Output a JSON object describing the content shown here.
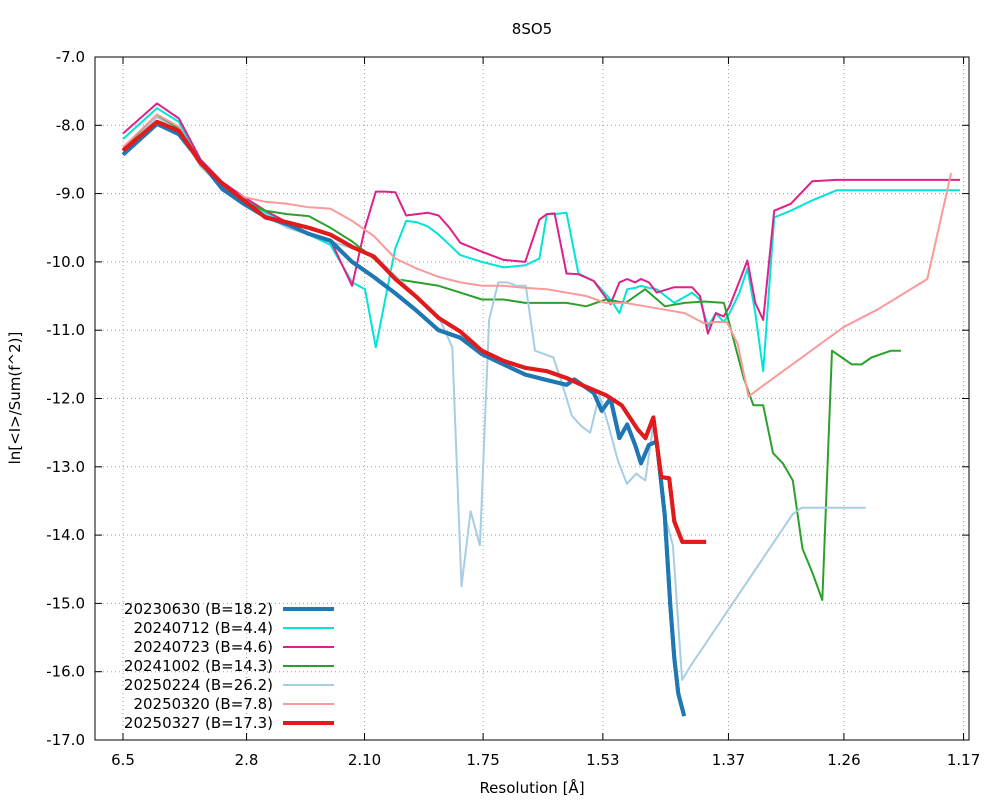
{
  "chart_data": {
    "type": "line",
    "title": "8SO5",
    "xlabel": "Resolution [Å]",
    "ylabel": "ln[<I>/Sum(f^2)]",
    "xlim": [
      0.0237,
      0.7275
    ],
    "ylim": [
      -17.0,
      -7.0
    ],
    "x_scale": "1/d^2",
    "x_ticks": [
      {
        "label": "6.5",
        "value": 0.0237
      },
      {
        "label": "2.8",
        "value": 0.1276
      },
      {
        "label": "2.10",
        "value": 0.2268
      },
      {
        "label": "1.75",
        "value": 0.3265
      },
      {
        "label": "1.53",
        "value": 0.4272
      },
      {
        "label": "1.37",
        "value": 0.5328
      },
      {
        "label": "1.26",
        "value": 0.6299
      },
      {
        "label": "1.17",
        "value": 0.7305
      }
    ],
    "y_ticks": [
      "-7.0",
      "-8.0",
      "-9.0",
      "-10.0",
      "-11.0",
      "-12.0",
      "-13.0",
      "-14.0",
      "-15.0",
      "-16.0",
      "-17.0"
    ],
    "grid": true,
    "legend_position": "bottom-left",
    "series": [
      {
        "name": "20230630 (B=18.2)",
        "color": "#1f77b4",
        "width": 4,
        "x": [
          0.0237,
          0.0523,
          0.0707,
          0.0889,
          0.1071,
          0.1253,
          0.1435,
          0.1617,
          0.1799,
          0.1981,
          0.2163,
          0.2345,
          0.2527,
          0.2709,
          0.2891,
          0.3073,
          0.3255,
          0.3437,
          0.3619,
          0.3801,
          0.3966,
          0.4032,
          0.4114,
          0.4196,
          0.4262,
          0.4336,
          0.4411,
          0.4477,
          0.4543,
          0.4593,
          0.4659,
          0.4725,
          0.4792,
          0.484,
          0.4873,
          0.4906,
          0.4956
        ],
        "y": [
          -8.43,
          -7.98,
          -8.13,
          -8.53,
          -8.93,
          -9.15,
          -9.34,
          -9.45,
          -9.59,
          -9.69,
          -10.0,
          -10.22,
          -10.46,
          -10.72,
          -11.0,
          -11.11,
          -11.35,
          -11.5,
          -11.65,
          -11.73,
          -11.8,
          -11.72,
          -11.82,
          -11.92,
          -12.18,
          -12.0,
          -12.58,
          -12.38,
          -12.68,
          -12.95,
          -12.68,
          -12.63,
          -13.7,
          -15.05,
          -15.8,
          -16.32,
          -16.65
        ]
      },
      {
        "name": "20240712 (B=4.4)",
        "color": "#00e5d8",
        "width": 2,
        "x": [
          0.0237,
          0.0523,
          0.0707,
          0.0889,
          0.1071,
          0.1253,
          0.1435,
          0.1617,
          0.1799,
          0.1981,
          0.2163,
          0.2272,
          0.2363,
          0.2436,
          0.2527,
          0.2618,
          0.2709,
          0.28,
          0.2891,
          0.2982,
          0.3073,
          0.3255,
          0.3437,
          0.3619,
          0.3738,
          0.3801,
          0.3866,
          0.3966,
          0.4066,
          0.4196,
          0.4336,
          0.4411,
          0.4477,
          0.4543,
          0.4593,
          0.4659,
          0.4725,
          0.4873,
          0.5022,
          0.5089,
          0.5155,
          0.5222,
          0.5288,
          0.5338,
          0.5421,
          0.5487,
          0.5554,
          0.562,
          0.5713,
          0.5852,
          0.6032,
          0.6239,
          0.6393,
          0.6489,
          0.6647,
          0.6796,
          0.6945,
          0.7094,
          0.7275
        ],
        "y": [
          -8.2,
          -7.75,
          -7.95,
          -8.55,
          -8.87,
          -9.08,
          -9.28,
          -9.42,
          -9.6,
          -9.75,
          -10.3,
          -10.4,
          -11.25,
          -10.6,
          -9.8,
          -9.4,
          -9.42,
          -9.48,
          -9.6,
          -9.75,
          -9.9,
          -10.0,
          -10.08,
          -10.05,
          -9.95,
          -9.3,
          -9.3,
          -9.28,
          -10.17,
          -10.28,
          -10.55,
          -10.75,
          -10.4,
          -10.38,
          -10.35,
          -10.38,
          -10.4,
          -10.6,
          -10.45,
          -10.55,
          -10.95,
          -10.75,
          -10.88,
          -10.75,
          -10.45,
          -10.1,
          -10.75,
          -11.6,
          -9.35,
          -9.25,
          -9.1,
          -8.95,
          -8.95,
          -8.95,
          -8.95,
          -8.95,
          -8.95,
          -8.95,
          -8.95
        ]
      },
      {
        "name": "20240723 (B=4.6)",
        "color": "#e0208a",
        "width": 2,
        "x": [
          0.0237,
          0.0523,
          0.0707,
          0.0889,
          0.1071,
          0.1253,
          0.1435,
          0.1617,
          0.1799,
          0.1981,
          0.2163,
          0.2272,
          0.2363,
          0.2436,
          0.2527,
          0.2618,
          0.2709,
          0.28,
          0.2891,
          0.2982,
          0.3073,
          0.3255,
          0.3437,
          0.3619,
          0.3738,
          0.3801,
          0.3866,
          0.3966,
          0.4066,
          0.4196,
          0.4336,
          0.4411,
          0.4477,
          0.4543,
          0.4593,
          0.4659,
          0.4725,
          0.4873,
          0.5022,
          0.5089,
          0.5155,
          0.5222,
          0.5288,
          0.5338,
          0.5421,
          0.5487,
          0.5554,
          0.562,
          0.5713,
          0.5852,
          0.6032,
          0.6239,
          0.6393,
          0.6489,
          0.6647,
          0.6796,
          0.6945,
          0.7094,
          0.7275
        ],
        "y": [
          -8.12,
          -7.68,
          -7.9,
          -8.5,
          -8.83,
          -9.05,
          -9.25,
          -9.42,
          -9.6,
          -9.68,
          -10.35,
          -9.5,
          -8.97,
          -8.97,
          -8.98,
          -9.32,
          -9.3,
          -9.28,
          -9.32,
          -9.5,
          -9.72,
          -9.85,
          -9.97,
          -10.0,
          -9.38,
          -9.3,
          -9.29,
          -10.17,
          -10.18,
          -10.28,
          -10.62,
          -10.3,
          -10.25,
          -10.3,
          -10.25,
          -10.3,
          -10.45,
          -10.37,
          -10.37,
          -10.5,
          -11.05,
          -10.75,
          -10.8,
          -10.65,
          -10.28,
          -9.98,
          -10.6,
          -10.85,
          -9.25,
          -9.15,
          -8.82,
          -8.8,
          -8.8,
          -8.8,
          -8.8,
          -8.8,
          -8.8,
          -8.8,
          -8.8
        ]
      },
      {
        "name": "20241002 (B=14.3)",
        "color": "#2ca02c",
        "width": 2,
        "x": [
          0.0237,
          0.0523,
          0.0707,
          0.0889,
          0.1071,
          0.1253,
          0.1435,
          0.1617,
          0.1799,
          0.1981,
          0.2163,
          0.2345,
          0.2527,
          0.2709,
          0.2891,
          0.3073,
          0.3255,
          0.3437,
          0.3619,
          0.3801,
          0.3966,
          0.4132,
          0.4297,
          0.4463,
          0.4628,
          0.4794,
          0.4959,
          0.5125,
          0.529,
          0.5456,
          0.5538,
          0.562,
          0.5703,
          0.5786,
          0.5869,
          0.5951,
          0.6034,
          0.6117,
          0.6199,
          0.6282,
          0.6365,
          0.6447,
          0.653,
          0.6613,
          0.6695,
          0.6778
        ],
        "y": [
          -8.35,
          -7.87,
          -8.05,
          -8.6,
          -8.9,
          -9.12,
          -9.25,
          -9.3,
          -9.33,
          -9.5,
          -9.7,
          -9.95,
          -10.25,
          -10.3,
          -10.35,
          -10.45,
          -10.55,
          -10.55,
          -10.6,
          -10.6,
          -10.6,
          -10.65,
          -10.55,
          -10.6,
          -10.4,
          -10.65,
          -10.6,
          -10.58,
          -10.6,
          -11.7,
          -12.1,
          -12.1,
          -12.8,
          -12.95,
          -13.2,
          -14.2,
          -14.55,
          -14.95,
          -11.3,
          -11.4,
          -11.5,
          -11.5,
          -11.4,
          -11.35,
          -11.3,
          -11.3
        ]
      },
      {
        "name": "20250224 (B=26.2)",
        "color": "#a6cee3",
        "width": 2,
        "x": [
          0.0237,
          0.0523,
          0.0707,
          0.0889,
          0.1071,
          0.1253,
          0.1435,
          0.1617,
          0.1799,
          0.1981,
          0.2163,
          0.2345,
          0.2527,
          0.2709,
          0.2891,
          0.3006,
          0.3083,
          0.316,
          0.3238,
          0.3315,
          0.3392,
          0.347,
          0.3547,
          0.3624,
          0.3701,
          0.3779,
          0.3856,
          0.3933,
          0.4011,
          0.4088,
          0.4165,
          0.4242,
          0.432,
          0.4397,
          0.4474,
          0.4552,
          0.4629,
          0.4706,
          0.4783,
          0.4861,
          0.4938,
          0.5015,
          0.5093,
          0.517,
          0.5247,
          0.5324,
          0.5402,
          0.5479,
          0.5556,
          0.5634,
          0.5711,
          0.5788,
          0.5865,
          0.5943,
          0.602,
          0.6097,
          0.6175,
          0.6252,
          0.6329,
          0.6406,
          0.6484
        ],
        "y": [
          -8.38,
          -7.88,
          -8.08,
          -8.6,
          -8.9,
          -9.12,
          -9.32,
          -9.5,
          -9.6,
          -9.7,
          -9.8,
          -9.9,
          -10.2,
          -10.5,
          -10.8,
          -11.25,
          -14.75,
          -13.65,
          -14.15,
          -10.85,
          -10.3,
          -10.3,
          -10.35,
          -10.35,
          -11.3,
          -11.35,
          -11.4,
          -11.8,
          -12.25,
          -12.4,
          -12.5,
          -11.95,
          -12.4,
          -12.9,
          -13.25,
          -13.1,
          -13.2,
          -12.25,
          -13.65,
          -14.15,
          -16.12,
          -15.9,
          -15.7,
          -15.5,
          -15.3,
          -15.1,
          -14.9,
          -14.7,
          -14.5,
          -14.3,
          -14.1,
          -13.9,
          -13.7,
          -13.6,
          -13.6,
          -13.6,
          -13.6,
          -13.6,
          -13.6,
          -13.6,
          -13.6
        ]
      },
      {
        "name": "20250320 (B=7.8)",
        "color": "#fb9a99",
        "width": 2,
        "x": [
          0.0237,
          0.0523,
          0.0707,
          0.0889,
          0.1071,
          0.1253,
          0.1435,
          0.1617,
          0.1799,
          0.1981,
          0.2163,
          0.2345,
          0.2527,
          0.2709,
          0.2891,
          0.3073,
          0.3255,
          0.3437,
          0.3619,
          0.3801,
          0.3966,
          0.4132,
          0.4297,
          0.4463,
          0.4628,
          0.4794,
          0.4959,
          0.5125,
          0.5224,
          0.5315,
          0.5406,
          0.5497,
          0.5588,
          0.63,
          0.658,
          0.7,
          0.72
        ],
        "y": [
          -8.32,
          -7.84,
          -8.02,
          -8.58,
          -8.88,
          -9.05,
          -9.12,
          -9.15,
          -9.2,
          -9.22,
          -9.4,
          -9.62,
          -9.95,
          -10.1,
          -10.22,
          -10.3,
          -10.35,
          -10.35,
          -10.38,
          -10.4,
          -10.45,
          -10.5,
          -10.6,
          -10.6,
          -10.65,
          -10.7,
          -10.75,
          -10.9,
          -10.88,
          -10.88,
          -11.2,
          -11.97,
          -11.85,
          -10.95,
          -10.7,
          -10.25,
          -8.7
        ]
      },
      {
        "name": "20250327 (B=17.3)",
        "color": "#e31a1c",
        "width": 4,
        "x": [
          0.0237,
          0.0523,
          0.0707,
          0.0889,
          0.1071,
          0.1253,
          0.1435,
          0.1617,
          0.1799,
          0.1981,
          0.2163,
          0.2345,
          0.2527,
          0.2709,
          0.2891,
          0.3073,
          0.3255,
          0.3437,
          0.3619,
          0.3801,
          0.3966,
          0.4132,
          0.4297,
          0.443,
          0.4563,
          0.463,
          0.4696,
          0.4763,
          0.483,
          0.4873,
          0.494,
          0.5007,
          0.5073,
          0.514
        ],
        "y": [
          -8.37,
          -7.95,
          -8.08,
          -8.55,
          -8.85,
          -9.1,
          -9.35,
          -9.42,
          -9.5,
          -9.6,
          -9.78,
          -9.92,
          -10.25,
          -10.52,
          -10.82,
          -11.02,
          -11.3,
          -11.45,
          -11.55,
          -11.6,
          -11.7,
          -11.83,
          -11.95,
          -12.1,
          -12.45,
          -12.58,
          -12.28,
          -13.15,
          -13.17,
          -13.8,
          -14.1,
          -14.1,
          -14.1,
          -14.1
        ]
      }
    ]
  }
}
